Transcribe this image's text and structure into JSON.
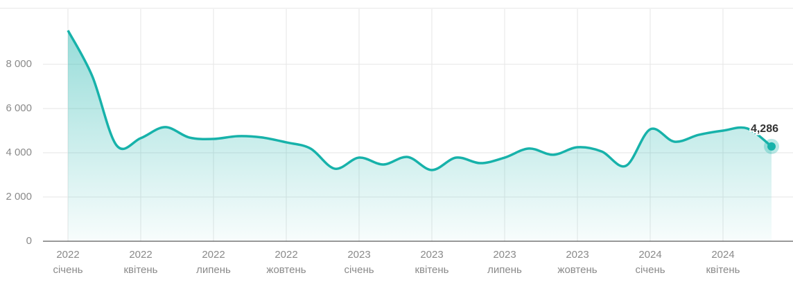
{
  "chart_data": {
    "type": "line",
    "categories": [
      [
        "2022",
        "січень"
      ],
      null,
      null,
      [
        "2022",
        "квітень"
      ],
      null,
      null,
      [
        "2022",
        "липень"
      ],
      null,
      null,
      [
        "2022",
        "жовтень"
      ],
      null,
      null,
      [
        "2023",
        "січень"
      ],
      null,
      null,
      [
        "2023",
        "квітень"
      ],
      null,
      null,
      [
        "2023",
        "липень"
      ],
      null,
      null,
      [
        "2023",
        "жовтень"
      ],
      null,
      null,
      [
        "2024",
        "січень"
      ],
      null,
      null,
      [
        "2024",
        "квітень"
      ],
      null,
      null
    ],
    "series": [
      {
        "color": "#17b2aa",
        "values": [
          9530,
          7470,
          4340,
          4660,
          5160,
          4690,
          4625,
          4750,
          4690,
          4470,
          4190,
          3280,
          3780,
          3470,
          3810,
          3220,
          3780,
          3530,
          3780,
          4190,
          3910,
          4250,
          4060,
          3410,
          5060,
          4500,
          4810,
          5000,
          5100,
          4286
        ],
        "value_labels": [
          null,
          null,
          null,
          null,
          null,
          null,
          null,
          null,
          null,
          null,
          null,
          null,
          null,
          null,
          null,
          null,
          null,
          null,
          null,
          null,
          null,
          null,
          null,
          null,
          null,
          null,
          null,
          null,
          null,
          "4,286"
        ]
      }
    ],
    "ylim": [
      0,
      10500
    ],
    "yticks": [
      0,
      {
        "value": 2000,
        "label": "2 000"
      },
      {
        "value": 4000,
        "label": "4 000"
      },
      {
        "value": 6000,
        "label": "6 000"
      },
      {
        "value": 8000,
        "label": "8 000"
      }
    ],
    "grid": true
  }
}
